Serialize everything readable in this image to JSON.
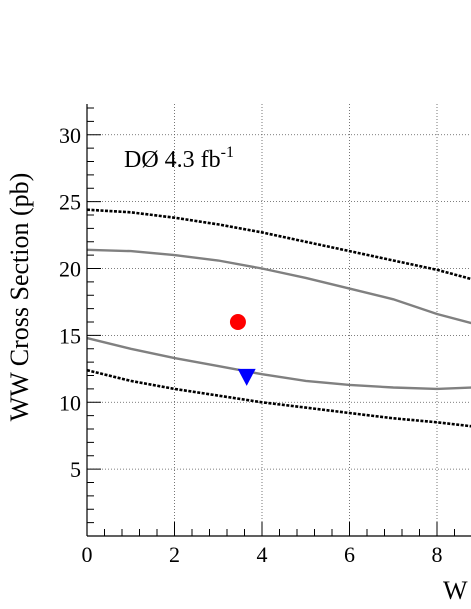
{
  "chart_data": {
    "type": "scatter",
    "title": "",
    "xlabel": "W",
    "ylabel": "WW Cross Section (pb)",
    "annotation": {
      "text": "DØ 4.3 fb",
      "superscript": "-1"
    },
    "xlim": [
      0,
      8.8
    ],
    "ylim": [
      0,
      32.3
    ],
    "xticks": [
      "0",
      "2",
      "4",
      "6",
      "8"
    ],
    "yticks": [
      "5",
      "10",
      "15",
      "20",
      "25",
      "30"
    ],
    "grid": true,
    "points": [
      {
        "x": 3.45,
        "y": 16.0,
        "marker": "circle",
        "color": "#ff0000"
      },
      {
        "x": 3.65,
        "y": 11.9,
        "marker": "triangle-down",
        "color": "#0000ff"
      }
    ],
    "curves": [
      {
        "style": "dotted",
        "color": "#000000",
        "x": [
          0,
          1,
          2,
          3,
          4,
          5,
          6,
          7,
          8,
          8.8
        ],
        "y": [
          24.4,
          24.2,
          23.8,
          23.3,
          22.7,
          22.0,
          21.3,
          20.6,
          19.9,
          19.2
        ]
      },
      {
        "style": "solid",
        "color": "#808080",
        "x": [
          0,
          1,
          2,
          3,
          4,
          5,
          6,
          7,
          8,
          8.8
        ],
        "y": [
          21.4,
          21.3,
          21.0,
          20.6,
          20.0,
          19.3,
          18.5,
          17.7,
          16.6,
          15.9
        ]
      },
      {
        "style": "solid",
        "color": "#808080",
        "x": [
          0,
          1,
          2,
          3,
          4,
          5,
          6,
          7,
          8,
          8.8
        ],
        "y": [
          14.8,
          14.0,
          13.3,
          12.7,
          12.1,
          11.6,
          11.3,
          11.1,
          11.0,
          11.1
        ]
      },
      {
        "style": "dotted",
        "color": "#000000",
        "x": [
          0,
          1,
          2,
          3,
          4,
          5,
          6,
          7,
          8,
          8.8
        ],
        "y": [
          12.4,
          11.6,
          11.0,
          10.5,
          10.0,
          9.6,
          9.2,
          8.8,
          8.5,
          8.2
        ]
      }
    ]
  }
}
